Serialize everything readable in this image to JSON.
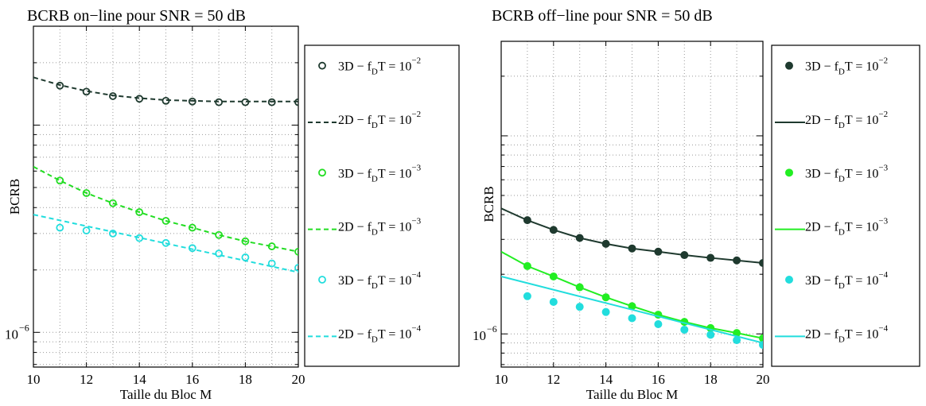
{
  "chart_data": [
    {
      "type": "scatter",
      "title": "BCRB on−line pour SNR = 50 dB",
      "xlabel": "Taille du Bloc M",
      "ylabel": "BCRB",
      "xlim": [
        10,
        20
      ],
      "ylim": [
        6.8e-07,
        3e-05
      ],
      "yscale": "log",
      "xticks": [
        10,
        12,
        14,
        16,
        18,
        20
      ],
      "xtick_labels": [
        "10",
        "12",
        "14",
        "16",
        "18",
        "20"
      ],
      "ytick_label": "10",
      "ytick_exp": "−6",
      "grid": true,
      "legend_position": "outside-right",
      "series": [
        {
          "name": "3D − f",
          "sub": "D",
          "tail": "T = 10",
          "exp": "−2",
          "style": "open-circle",
          "color": "#1f3a2f",
          "x": [
            11,
            12,
            13,
            14,
            15,
            16,
            17,
            18,
            19,
            20
          ],
          "values": [
            1.55e-05,
            1.45e-05,
            1.38e-05,
            1.34e-05,
            1.31e-05,
            1.3e-05,
            1.29e-05,
            1.29e-05,
            1.29e-05,
            1.29e-05
          ]
        },
        {
          "name": "2D − f",
          "sub": "D",
          "tail": "T = 10",
          "exp": "−2",
          "style": "dashed",
          "color": "#1f3a2f",
          "x": [
            10,
            11,
            12,
            13,
            14,
            15,
            16,
            17,
            18,
            19,
            20
          ],
          "values": [
            1.7e-05,
            1.56e-05,
            1.46e-05,
            1.39e-05,
            1.35e-05,
            1.32e-05,
            1.31e-05,
            1.3e-05,
            1.3e-05,
            1.3e-05,
            1.3e-05
          ]
        },
        {
          "name": "3D − f",
          "sub": "D",
          "tail": "T = 10",
          "exp": "−3",
          "style": "open-circle",
          "color": "#22dd22",
          "x": [
            11,
            12,
            13,
            14,
            15,
            16,
            17,
            18,
            19,
            20
          ],
          "values": [
            5.4e-06,
            4.7e-06,
            4.2e-06,
            3.8e-06,
            3.45e-06,
            3.2e-06,
            2.95e-06,
            2.75e-06,
            2.6e-06,
            2.45e-06
          ]
        },
        {
          "name": "2D − f",
          "sub": "D",
          "tail": "T = 10",
          "exp": "−3",
          "style": "dashed",
          "color": "#22dd22",
          "x": [
            10,
            11,
            12,
            13,
            14,
            15,
            16,
            17,
            18,
            19,
            20
          ],
          "values": [
            6.3e-06,
            5.4e-06,
            4.7e-06,
            4.2e-06,
            3.8e-06,
            3.45e-06,
            3.2e-06,
            2.95e-06,
            2.75e-06,
            2.6e-06,
            2.45e-06
          ]
        },
        {
          "name": "3D − f",
          "sub": "D",
          "tail": "T = 10",
          "exp": "−4",
          "style": "open-circle",
          "color": "#22dddd",
          "x": [
            11,
            12,
            13,
            14,
            15,
            16,
            17,
            18,
            19,
            20
          ],
          "values": [
            3.2e-06,
            3.1e-06,
            3e-06,
            2.85e-06,
            2.7e-06,
            2.55e-06,
            2.4e-06,
            2.3e-06,
            2.15e-06,
            2.05e-06
          ]
        },
        {
          "name": "2D − f",
          "sub": "D",
          "tail": "T = 10",
          "exp": "−4",
          "style": "dashed",
          "color": "#22dddd",
          "x": [
            10,
            20
          ],
          "values": [
            3.7e-06,
            1.95e-06
          ]
        }
      ]
    },
    {
      "type": "scatter",
      "title": "BCRB off−line pour SNR = 50 dB",
      "xlabel": "Taille du Bloc M",
      "ylabel": "BCRB",
      "xlim": [
        10,
        20
      ],
      "ylim": [
        6.8e-07,
        3e-05
      ],
      "yscale": "log",
      "xticks": [
        10,
        12,
        14,
        16,
        18,
        20
      ],
      "xtick_labels": [
        "10",
        "12",
        "14",
        "16",
        "18",
        "20"
      ],
      "ytick_label": "10",
      "ytick_exp": "−6",
      "grid": true,
      "legend_position": "outside-right",
      "series": [
        {
          "name": "3D − f",
          "sub": "D",
          "tail": "T = 10",
          "exp": "−2",
          "style": "filled-circle",
          "color": "#1f3a2f",
          "x": [
            11,
            12,
            13,
            14,
            15,
            16,
            17,
            18,
            19,
            20
          ],
          "values": [
            3.75e-06,
            3.35e-06,
            3.05e-06,
            2.85e-06,
            2.7e-06,
            2.6e-06,
            2.5e-06,
            2.42e-06,
            2.35e-06,
            2.28e-06
          ]
        },
        {
          "name": "2D − f",
          "sub": "D",
          "tail": "T = 10",
          "exp": "−2",
          "style": "solid",
          "color": "#1f3a2f",
          "x": [
            10,
            11,
            12,
            13,
            14,
            15,
            16,
            17,
            18,
            19,
            20
          ],
          "values": [
            4.3e-06,
            3.75e-06,
            3.35e-06,
            3.05e-06,
            2.85e-06,
            2.7e-06,
            2.6e-06,
            2.5e-06,
            2.42e-06,
            2.35e-06,
            2.28e-06
          ]
        },
        {
          "name": "3D − f",
          "sub": "D",
          "tail": "T = 10",
          "exp": "−3",
          "style": "filled-circle",
          "color": "#22ee22",
          "x": [
            11,
            12,
            13,
            14,
            15,
            16,
            17,
            18,
            19,
            20
          ],
          "values": [
            2.2e-06,
            1.95e-06,
            1.72e-06,
            1.53e-06,
            1.38e-06,
            1.25e-06,
            1.15e-06,
            1.07e-06,
            1.01e-06,
            9.5e-07
          ]
        },
        {
          "name": "2D − f",
          "sub": "D",
          "tail": "T = 10",
          "exp": "−3",
          "style": "solid",
          "color": "#22ee22",
          "x": [
            10,
            11,
            12,
            13,
            14,
            15,
            16,
            17,
            18,
            19,
            20
          ],
          "values": [
            2.6e-06,
            2.2e-06,
            1.95e-06,
            1.72e-06,
            1.53e-06,
            1.38e-06,
            1.25e-06,
            1.15e-06,
            1.07e-06,
            1.01e-06,
            9.5e-07
          ]
        },
        {
          "name": "3D − f",
          "sub": "D",
          "tail": "T = 10",
          "exp": "−4",
          "style": "filled-circle",
          "color": "#22dddd",
          "x": [
            11,
            12,
            13,
            14,
            15,
            16,
            17,
            18,
            19,
            20
          ],
          "values": [
            1.55e-06,
            1.45e-06,
            1.37e-06,
            1.29e-06,
            1.2e-06,
            1.12e-06,
            1.05e-06,
            9.9e-07,
            9.3e-07,
            8.8e-07
          ]
        },
        {
          "name": "2D − f",
          "sub": "D",
          "tail": "T = 10",
          "exp": "−4",
          "style": "solid",
          "color": "#22dddd",
          "x": [
            10,
            20
          ],
          "values": [
            1.95e-06,
            9e-07
          ]
        }
      ]
    }
  ]
}
